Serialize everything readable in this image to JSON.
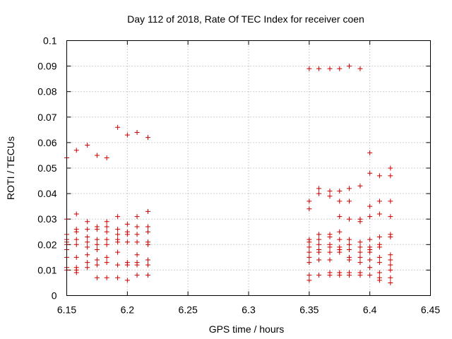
{
  "chart_data": {
    "type": "scatter",
    "title": "Day 112 of 2018, Rate Of TEC Index for receiver coen",
    "xlabel": "GPS time / hours",
    "ylabel": "ROTI / TECUs",
    "xlim": [
      6.15,
      6.45
    ],
    "ylim": [
      0,
      0.1
    ],
    "xticks": [
      6.15,
      6.2,
      6.25,
      6.3,
      6.35,
      6.4,
      6.45
    ],
    "xtick_labels": [
      "6.15",
      "6.2",
      "6.25",
      "6.3",
      "6.35",
      "6.4",
      "6.45"
    ],
    "yticks": [
      0,
      0.01,
      0.02,
      0.03,
      0.04,
      0.05,
      0.06,
      0.07,
      0.08,
      0.09,
      0.1
    ],
    "ytick_labels": [
      "0",
      "0.01",
      "0.02",
      "0.03",
      "0.04",
      "0.05",
      "0.06",
      "0.07",
      "0.08",
      "0.09",
      "0.1"
    ],
    "grid": true,
    "marker": "plus",
    "color": "#cc0000",
    "series": [
      {
        "name": "ROTI",
        "points": [
          [
            6.15,
            0.054
          ],
          [
            6.15,
            0.03
          ],
          [
            6.15,
            0.024
          ],
          [
            6.15,
            0.022
          ],
          [
            6.15,
            0.021
          ],
          [
            6.15,
            0.02
          ],
          [
            6.15,
            0.018
          ],
          [
            6.15,
            0.015
          ],
          [
            6.15,
            0.011
          ],
          [
            6.15,
            0.01
          ],
          [
            6.158,
            0.057
          ],
          [
            6.158,
            0.032
          ],
          [
            6.158,
            0.026
          ],
          [
            6.158,
            0.025
          ],
          [
            6.158,
            0.022
          ],
          [
            6.158,
            0.02
          ],
          [
            6.158,
            0.015
          ],
          [
            6.158,
            0.011
          ],
          [
            6.158,
            0.01
          ],
          [
            6.158,
            0.009
          ],
          [
            6.167,
            0.059
          ],
          [
            6.167,
            0.029
          ],
          [
            6.167,
            0.026
          ],
          [
            6.167,
            0.023
          ],
          [
            6.167,
            0.021
          ],
          [
            6.167,
            0.019
          ],
          [
            6.167,
            0.016
          ],
          [
            6.167,
            0.013
          ],
          [
            6.167,
            0.011
          ],
          [
            6.175,
            0.055
          ],
          [
            6.175,
            0.027
          ],
          [
            6.175,
            0.026
          ],
          [
            6.175,
            0.022
          ],
          [
            6.175,
            0.02
          ],
          [
            6.175,
            0.018
          ],
          [
            6.175,
            0.014
          ],
          [
            6.175,
            0.012
          ],
          [
            6.175,
            0.007
          ],
          [
            6.183,
            0.054
          ],
          [
            6.183,
            0.029
          ],
          [
            6.183,
            0.027
          ],
          [
            6.183,
            0.025
          ],
          [
            6.183,
            0.022
          ],
          [
            6.183,
            0.02
          ],
          [
            6.183,
            0.015
          ],
          [
            6.183,
            0.013
          ],
          [
            6.183,
            0.007
          ],
          [
            6.192,
            0.066
          ],
          [
            6.192,
            0.031
          ],
          [
            6.192,
            0.026
          ],
          [
            6.192,
            0.024
          ],
          [
            6.192,
            0.022
          ],
          [
            6.192,
            0.021
          ],
          [
            6.192,
            0.017
          ],
          [
            6.192,
            0.012
          ],
          [
            6.192,
            0.007
          ],
          [
            6.2,
            0.063
          ],
          [
            6.2,
            0.028
          ],
          [
            6.2,
            0.025
          ],
          [
            6.2,
            0.024
          ],
          [
            6.2,
            0.021
          ],
          [
            6.2,
            0.013
          ],
          [
            6.2,
            0.012
          ],
          [
            6.2,
            0.006
          ],
          [
            6.208,
            0.064
          ],
          [
            6.208,
            0.031
          ],
          [
            6.208,
            0.027
          ],
          [
            6.208,
            0.024
          ],
          [
            6.208,
            0.021
          ],
          [
            6.208,
            0.016
          ],
          [
            6.208,
            0.013
          ],
          [
            6.208,
            0.012
          ],
          [
            6.208,
            0.008
          ],
          [
            6.217,
            0.062
          ],
          [
            6.217,
            0.033
          ],
          [
            6.217,
            0.027
          ],
          [
            6.217,
            0.025
          ],
          [
            6.217,
            0.021
          ],
          [
            6.217,
            0.02
          ],
          [
            6.217,
            0.014
          ],
          [
            6.217,
            0.012
          ],
          [
            6.217,
            0.008
          ],
          [
            6.35,
            0.089
          ],
          [
            6.35,
            0.037
          ],
          [
            6.35,
            0.034
          ],
          [
            6.35,
            0.022
          ],
          [
            6.35,
            0.021
          ],
          [
            6.35,
            0.019
          ],
          [
            6.35,
            0.017
          ],
          [
            6.35,
            0.015
          ],
          [
            6.35,
            0.013
          ],
          [
            6.35,
            0.008
          ],
          [
            6.35,
            0.006
          ],
          [
            6.358,
            0.089
          ],
          [
            6.358,
            0.042
          ],
          [
            6.358,
            0.04
          ],
          [
            6.358,
            0.024
          ],
          [
            6.358,
            0.022
          ],
          [
            6.358,
            0.02
          ],
          [
            6.358,
            0.018
          ],
          [
            6.358,
            0.017
          ],
          [
            6.358,
            0.014
          ],
          [
            6.358,
            0.008
          ],
          [
            6.367,
            0.089
          ],
          [
            6.367,
            0.041
          ],
          [
            6.367,
            0.039
          ],
          [
            6.367,
            0.024
          ],
          [
            6.367,
            0.023
          ],
          [
            6.367,
            0.02
          ],
          [
            6.367,
            0.019
          ],
          [
            6.367,
            0.017
          ],
          [
            6.367,
            0.014
          ],
          [
            6.367,
            0.009
          ],
          [
            6.367,
            0.008
          ],
          [
            6.375,
            0.089
          ],
          [
            6.375,
            0.041
          ],
          [
            6.375,
            0.037
          ],
          [
            6.375,
            0.031
          ],
          [
            6.375,
            0.025
          ],
          [
            6.375,
            0.022
          ],
          [
            6.375,
            0.019
          ],
          [
            6.375,
            0.018
          ],
          [
            6.375,
            0.017
          ],
          [
            6.375,
            0.009
          ],
          [
            6.375,
            0.008
          ],
          [
            6.383,
            0.09
          ],
          [
            6.383,
            0.042
          ],
          [
            6.383,
            0.037
          ],
          [
            6.383,
            0.03
          ],
          [
            6.383,
            0.022
          ],
          [
            6.383,
            0.02
          ],
          [
            6.383,
            0.018
          ],
          [
            6.383,
            0.015
          ],
          [
            6.383,
            0.014
          ],
          [
            6.383,
            0.009
          ],
          [
            6.383,
            0.008
          ],
          [
            6.392,
            0.089
          ],
          [
            6.392,
            0.043
          ],
          [
            6.392,
            0.03
          ],
          [
            6.392,
            0.029
          ],
          [
            6.392,
            0.021
          ],
          [
            6.392,
            0.019
          ],
          [
            6.392,
            0.017
          ],
          [
            6.392,
            0.015
          ],
          [
            6.392,
            0.013
          ],
          [
            6.392,
            0.009
          ],
          [
            6.392,
            0.008
          ],
          [
            6.4,
            0.056
          ],
          [
            6.4,
            0.048
          ],
          [
            6.4,
            0.035
          ],
          [
            6.4,
            0.031
          ],
          [
            6.4,
            0.022
          ],
          [
            6.4,
            0.019
          ],
          [
            6.4,
            0.018
          ],
          [
            6.4,
            0.017
          ],
          [
            6.4,
            0.014
          ],
          [
            6.4,
            0.011
          ],
          [
            6.4,
            0.008
          ],
          [
            6.408,
            0.047
          ],
          [
            6.408,
            0.037
          ],
          [
            6.408,
            0.032
          ],
          [
            6.408,
            0.023
          ],
          [
            6.408,
            0.02
          ],
          [
            6.408,
            0.019
          ],
          [
            6.408,
            0.015
          ],
          [
            6.408,
            0.013
          ],
          [
            6.408,
            0.009
          ],
          [
            6.408,
            0.007
          ],
          [
            6.408,
            0.006
          ],
          [
            6.417,
            0.05
          ],
          [
            6.417,
            0.047
          ],
          [
            6.417,
            0.037
          ],
          [
            6.417,
            0.031
          ],
          [
            6.417,
            0.024
          ],
          [
            6.417,
            0.023
          ],
          [
            6.417,
            0.016
          ],
          [
            6.417,
            0.014
          ],
          [
            6.417,
            0.012
          ],
          [
            6.417,
            0.01
          ],
          [
            6.417,
            0.007
          ],
          [
            6.417,
            0.005
          ]
        ]
      }
    ]
  }
}
